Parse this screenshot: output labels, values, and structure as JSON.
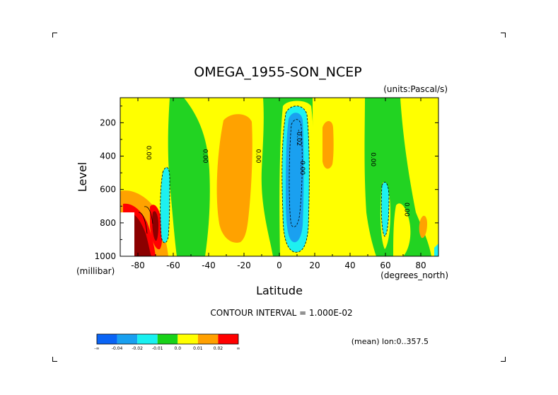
{
  "chart_data": {
    "type": "heatmap",
    "title": "OMEGA_1955-SON_NCEP",
    "units_label": "(units:Pascal/s)",
    "xlabel": "Latitude",
    "ylabel": "Level",
    "x_units": "(degrees_north)",
    "y_units": "(millibar)",
    "xlim": [
      -90,
      90
    ],
    "ylim": [
      1000,
      50
    ],
    "y_reversed": true,
    "x_ticks": [
      "-80",
      "-60",
      "-40",
      "-20",
      "0",
      "20",
      "40",
      "60",
      "80"
    ],
    "x_tick_values": [
      -80,
      -60,
      -40,
      -20,
      0,
      20,
      40,
      60,
      80
    ],
    "y_ticks": [
      "200",
      "400",
      "600",
      "800",
      "1000"
    ],
    "y_tick_values": [
      200,
      400,
      600,
      800,
      1000
    ],
    "contour_interval_text": "CONTOUR INTERVAL = 1.000E-02",
    "mean_text": "(mean) lon:0..357.5",
    "contour_labels": [
      {
        "text": "0.00",
        "lat": -75,
        "lev": 380
      },
      {
        "text": "0.00",
        "lat": -43,
        "lev": 400
      },
      {
        "text": "0.00",
        "lat": -13,
        "lev": 400
      },
      {
        "text": "0.00",
        "lat": 12,
        "lev": 470
      },
      {
        "text": "-0.02",
        "lat": 10,
        "lev": 290
      },
      {
        "text": "0.00",
        "lat": 52,
        "lev": 420
      },
      {
        "text": "0.00",
        "lat": 71,
        "lev": 720
      }
    ],
    "legend": {
      "labels": [
        "-∞",
        "-0.04",
        "-0.02",
        "-0.01",
        "0.0",
        "0.01",
        "0.02",
        "∞"
      ],
      "colors": [
        "#0a64f5",
        "#19a0f0",
        "#19f0f0",
        "#19d219",
        "#ffff00",
        "#ffa000",
        "#ff0000"
      ]
    },
    "fill_colors": {
      "green": "#22d322",
      "yellow": "#ffff00",
      "orange": "#ffa200",
      "cyan": "#1ef0f0",
      "blue": "#1aa0f0",
      "red": "#ff0000",
      "darkred": "#8b0000",
      "black": "#000000"
    }
  }
}
